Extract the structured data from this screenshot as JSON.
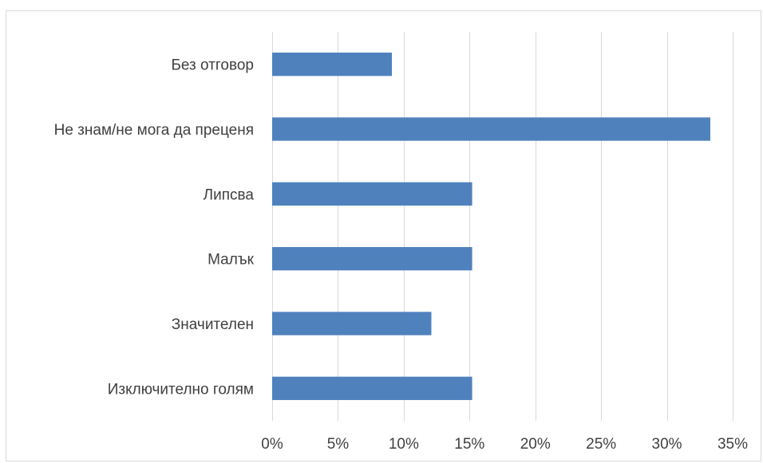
{
  "chart_data": {
    "type": "bar",
    "orientation": "horizontal",
    "categories": [
      "Без отговор",
      "Не знам/не мога да преценя",
      "Липсва",
      "Малък",
      "Значителен",
      "Изключително голям"
    ],
    "values": [
      9.1,
      33.3,
      15.2,
      15.2,
      12.1,
      15.2
    ],
    "value_unit": "%",
    "xlim": [
      0,
      35
    ],
    "xticks": [
      0,
      5,
      10,
      15,
      20,
      25,
      30,
      35
    ],
    "tick_labels": [
      "0%",
      "5%",
      "10%",
      "15%",
      "20%",
      "25%",
      "30%",
      "35%"
    ],
    "title": "",
    "xlabel": "",
    "ylabel": "",
    "grid": "vertical",
    "legend": "none",
    "bar_color": "#4f81bd",
    "grid_color": "#d9d9d9"
  }
}
